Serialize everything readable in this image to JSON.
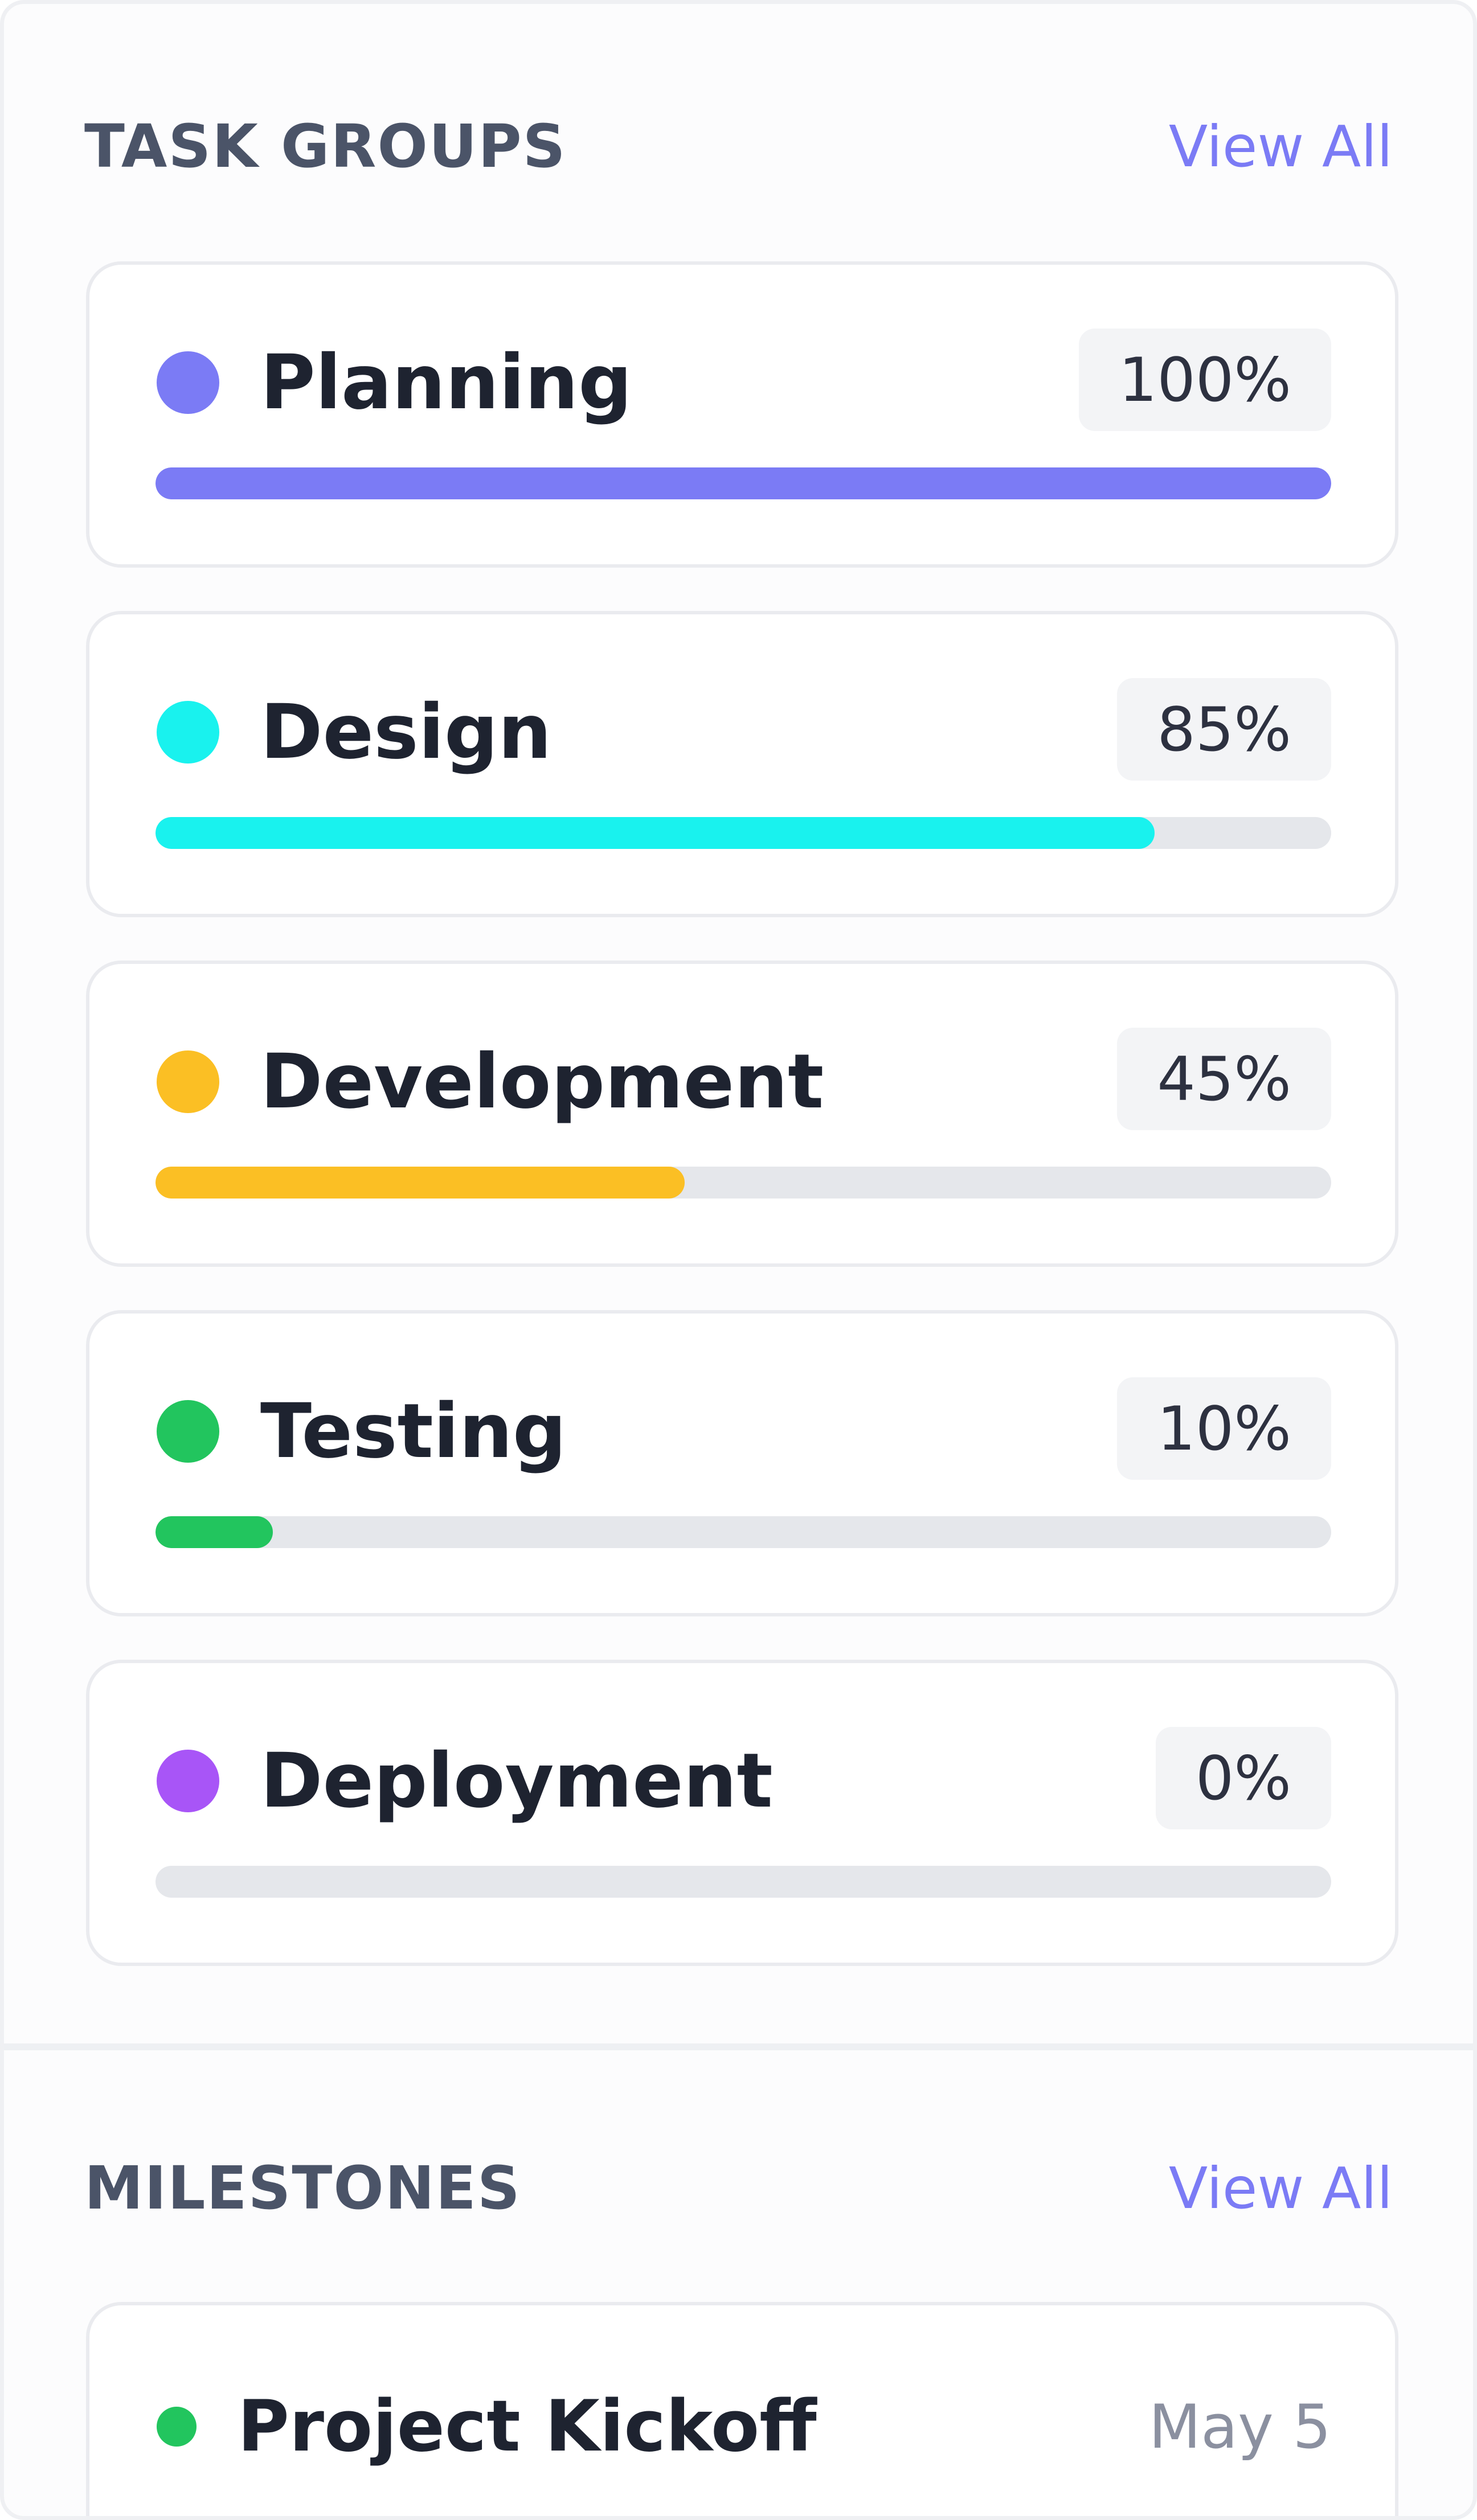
{
  "task_groups": {
    "title": "TASK GROUPS",
    "view_all_label": "View All",
    "items": [
      {
        "name": "Planning",
        "percent_label": "100%",
        "progress": 1.0,
        "color": "#7b7bf5"
      },
      {
        "name": "Design",
        "percent_label": "85%",
        "progress": 0.85,
        "color": "#19f2ee"
      },
      {
        "name": "Development",
        "percent_label": "45%",
        "progress": 0.45,
        "color": "#fbbf24"
      },
      {
        "name": "Testing",
        "percent_label": "10%",
        "progress": 0.1,
        "color": "#22c55e"
      },
      {
        "name": "Deployment",
        "percent_label": "0%",
        "progress": 0.0,
        "color": "#a855f7"
      }
    ]
  },
  "milestones": {
    "title": "MILESTONES",
    "view_all_label": "View All",
    "items": [
      {
        "name": "Project Kickoff",
        "date": "May 5",
        "color": "#22c55e"
      }
    ]
  },
  "colors": {
    "accent": "#7b7bf5",
    "track": "#e5e7eb"
  }
}
